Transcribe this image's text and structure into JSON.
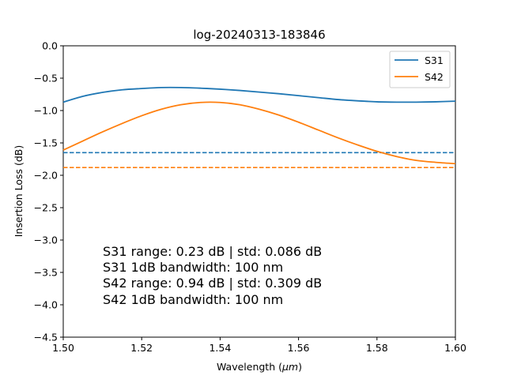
{
  "chart_data": {
    "type": "line",
    "title": "log-20240313-183846",
    "xlabel": "Wavelength (",
    "xlabel_unit": "μm",
    "xlabel_close": ")",
    "ylabel": "Insertion Loss (dB)",
    "xlim": [
      1.5,
      1.6
    ],
    "ylim": [
      -4.5,
      0.0
    ],
    "x_ticks": [
      "1.50",
      "1.52",
      "1.54",
      "1.56",
      "1.58",
      "1.60"
    ],
    "y_ticks": [
      "0.0",
      "−0.5",
      "−1.0",
      "−1.5",
      "−2.0",
      "−2.5",
      "−3.0",
      "−3.5",
      "−4.0",
      "−4.5"
    ],
    "grid": false,
    "legend_position": "top-right",
    "series": [
      {
        "name": "S31",
        "color": "#1f77b4",
        "x": [
          1.5,
          1.505,
          1.51,
          1.515,
          1.52,
          1.525,
          1.53,
          1.535,
          1.54,
          1.545,
          1.55,
          1.555,
          1.56,
          1.565,
          1.57,
          1.575,
          1.58,
          1.585,
          1.59,
          1.595,
          1.6
        ],
        "y": [
          -0.87,
          -0.78,
          -0.72,
          -0.68,
          -0.66,
          -0.645,
          -0.645,
          -0.655,
          -0.67,
          -0.69,
          -0.715,
          -0.74,
          -0.77,
          -0.8,
          -0.83,
          -0.85,
          -0.865,
          -0.87,
          -0.87,
          -0.865,
          -0.855
        ]
      },
      {
        "name": "S42",
        "color": "#ff7f0e",
        "x": [
          1.5,
          1.505,
          1.51,
          1.515,
          1.52,
          1.525,
          1.53,
          1.535,
          1.54,
          1.545,
          1.55,
          1.555,
          1.56,
          1.565,
          1.57,
          1.575,
          1.58,
          1.585,
          1.59,
          1.595,
          1.6
        ],
        "y": [
          -1.61,
          -1.47,
          -1.33,
          -1.2,
          -1.08,
          -0.98,
          -0.91,
          -0.875,
          -0.875,
          -0.91,
          -0.98,
          -1.07,
          -1.18,
          -1.3,
          -1.42,
          -1.53,
          -1.63,
          -1.71,
          -1.77,
          -1.8,
          -1.82
        ]
      }
    ],
    "reference_lines": [
      {
        "series": "S31",
        "y": -1.65,
        "color": "#1f77b4",
        "style": "dashed"
      },
      {
        "series": "S42",
        "y": -1.88,
        "color": "#ff7f0e",
        "style": "dashed"
      }
    ],
    "annotations": [
      "S31 range: 0.23 dB | std: 0.086 dB",
      "S31 1dB bandwidth: 100 nm",
      "S42 range: 0.94 dB | std: 0.309 dB",
      "S42 1dB bandwidth: 100 nm"
    ]
  }
}
